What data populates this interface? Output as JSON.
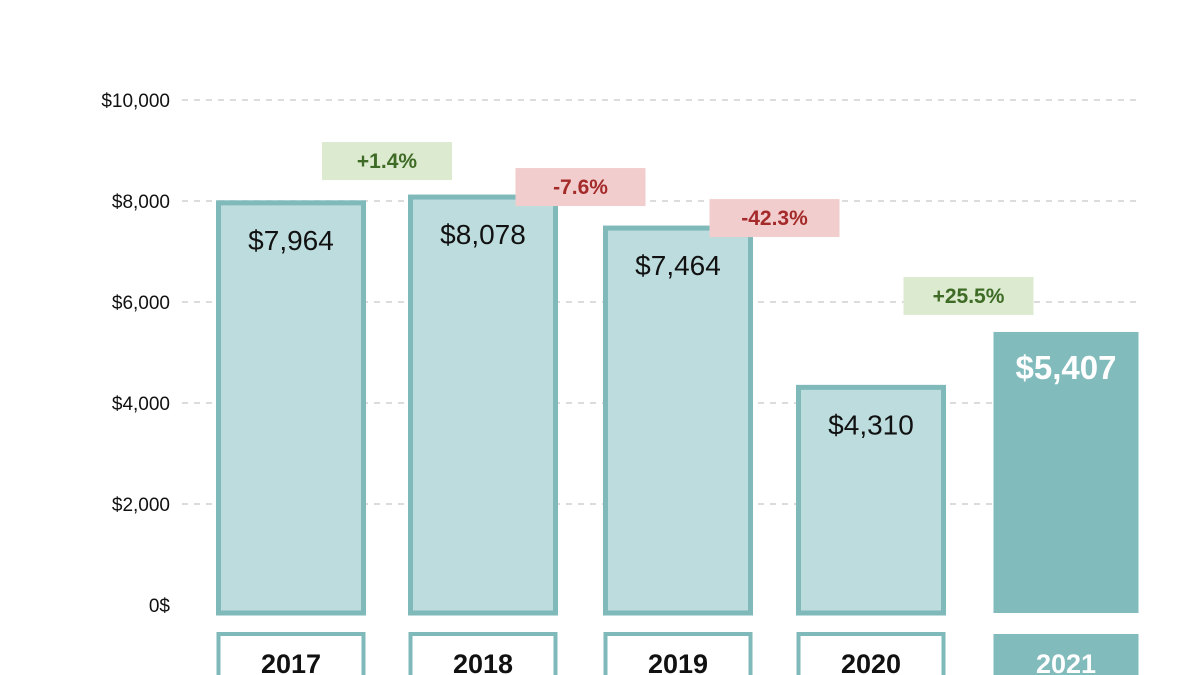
{
  "chart_data": {
    "type": "bar",
    "title": "",
    "xlabel": "",
    "ylabel": "",
    "ylim": [
      0,
      10000
    ],
    "grid": true,
    "categories": [
      "2017",
      "2018",
      "2019",
      "2020",
      "2021"
    ],
    "values": [
      7964,
      8078,
      7464,
      4310,
      5407
    ],
    "value_labels": [
      "$7,964",
      "$8,078",
      "$7,464",
      "$4,310",
      "$5,407"
    ],
    "y_ticks": [
      {
        "value": 0,
        "label": "0$"
      },
      {
        "value": 2000,
        "label": "$2,000"
      },
      {
        "value": 4000,
        "label": "$4,000"
      },
      {
        "value": 6000,
        "label": "$6,000"
      },
      {
        "value": 8000,
        "label": "$8,000"
      },
      {
        "value": 10000,
        "label": "$10,000"
      }
    ],
    "changes": [
      {
        "between": [
          "2017",
          "2018"
        ],
        "label": "+1.4%",
        "direction": "up"
      },
      {
        "between": [
          "2018",
          "2019"
        ],
        "label": "-7.6%",
        "direction": "down"
      },
      {
        "between": [
          "2019",
          "2020"
        ],
        "label": "-42.3%",
        "direction": "down"
      },
      {
        "between": [
          "2020",
          "2021"
        ],
        "label": "+25.5%",
        "direction": "up"
      }
    ],
    "highlight_category": "2021",
    "colors": {
      "bar_fill": "#bcdcdd",
      "bar_border": "#7fb9ba",
      "highlight_fill": "#82bbbc",
      "highlight_text": "#ffffff",
      "up_bg": "#dceacf",
      "up_text": "#3e6b25",
      "down_bg": "#f1cdcd",
      "down_text": "#a52a2a",
      "grid": "#d0d0d0",
      "text": "#111111"
    }
  }
}
